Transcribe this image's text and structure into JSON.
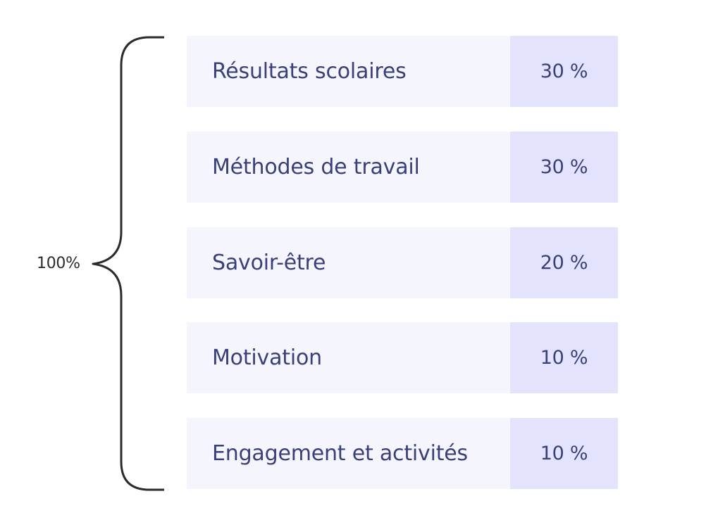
{
  "total": {
    "label": "100%"
  },
  "criteria": [
    {
      "label": "Résultats scolaires",
      "value": "30 %"
    },
    {
      "label": "Méthodes de travail",
      "value": "30 %"
    },
    {
      "label": "Savoir-être",
      "value": "20 %"
    },
    {
      "label": "Motivation",
      "value": "10 %"
    },
    {
      "label": "Engagement et activités",
      "value": "10 %"
    }
  ],
  "colors": {
    "label_background": "#f5f5fe",
    "value_background": "#e3e3fd",
    "text": "#3a3f7a",
    "brace": "#2b2b2b"
  }
}
